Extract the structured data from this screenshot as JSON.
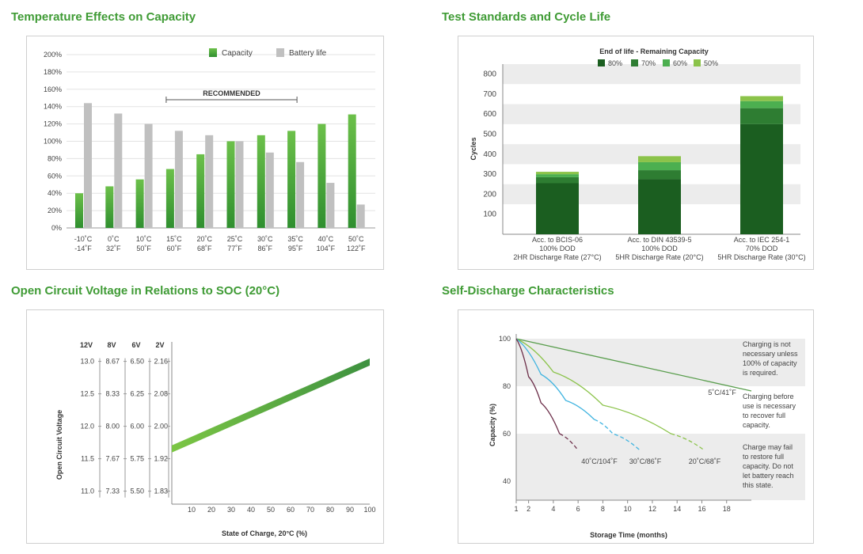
{
  "colors": {
    "title_green": "#3f9b35",
    "capacity_green": "#5cb85c",
    "battery_gray": "#c0c0c0",
    "c80": "#1b5e20",
    "c70": "#2e7d32",
    "c60": "#4caf50",
    "c50": "#8bc34a",
    "band_gray": "#ececec",
    "ocv_green": "#5aab3c",
    "line_5c": "#5a9e4e",
    "line_20c": "#8bc34a",
    "line_30c": "#40b4e0",
    "line_40c": "#6d2f4a"
  },
  "chart_data": [
    {
      "id": "temperature",
      "type": "bar",
      "title": "Temperature Effects on Capacity",
      "categories": [
        "-10˚C",
        "0˚C",
        "10˚C",
        "15˚C",
        "20˚C",
        "25˚C",
        "30˚C",
        "35˚C",
        "40˚C",
        "50˚C"
      ],
      "categories_f": [
        "-14˚F",
        "32˚F",
        "50˚F",
        "60˚F",
        "68˚F",
        "77˚F",
        "86˚F",
        "95˚F",
        "104˚F",
        "122˚F"
      ],
      "series": [
        {
          "name": "Capacity",
          "values": [
            40,
            48,
            56,
            68,
            85,
            100,
            107,
            112,
            120,
            131
          ]
        },
        {
          "name": "Battery life",
          "values": [
            144,
            132,
            120,
            112,
            107,
            100,
            87,
            76,
            52,
            27
          ]
        }
      ],
      "ylim": [
        0,
        200
      ],
      "yticks": [
        "0%",
        "20%",
        "40%",
        "60%",
        "80%",
        "100%",
        "120%",
        "140%",
        "160%",
        "180%",
        "200%"
      ],
      "annotation": "RECOMMENDED",
      "legend": "top-right"
    },
    {
      "id": "cycle",
      "type": "bar",
      "stacked": true,
      "title": "Test Standards and Cycle Life",
      "legend_title": "End of life - Remaining Capacity",
      "ylabel": "Cycles",
      "ylim": [
        0,
        850
      ],
      "yticks": [
        "100",
        "200",
        "300",
        "400",
        "500",
        "600",
        "700",
        "800"
      ],
      "categories": [
        [
          "Acc. to BCIS-06",
          "100% DOD",
          "2HR Discharge Rate (27°C)"
        ],
        [
          "Acc. to DIN 43539-5",
          "100% DOD",
          "5HR Discharge Rate (20°C)"
        ],
        [
          "Acc. to IEC 254-1",
          "70% DOD",
          "5HR Discharge Rate (30°C)"
        ]
      ],
      "series": [
        {
          "name": "80%",
          "values": [
            255,
            275,
            550
          ]
        },
        {
          "name": "70%",
          "values": [
            30,
            45,
            80
          ]
        },
        {
          "name": "60%",
          "values": [
            15,
            40,
            35
          ]
        },
        {
          "name": "50%",
          "values": [
            12,
            30,
            25
          ]
        }
      ]
    },
    {
      "id": "ocv",
      "type": "line",
      "title": "Open Circuit Voltage in Relations to SOC (20°C)",
      "ylabel": "Open Circuit Voltage",
      "xlabel": "State of Charge, 20°C (%)",
      "x": [
        0,
        100
      ],
      "y": [
        11.65,
        12.99
      ],
      "ylim": [
        10.8,
        13.3
      ],
      "xticks": [
        "10",
        "20",
        "30",
        "40",
        "50",
        "60",
        "70",
        "80",
        "90",
        "100"
      ],
      "scales": [
        {
          "header": "12V",
          "ticks": [
            "13.0",
            "12.5",
            "12.0",
            "11.5",
            "11.0"
          ]
        },
        {
          "header": "8V",
          "ticks": [
            "8.67",
            "8.33",
            "8.00",
            "7.67",
            "7.33"
          ]
        },
        {
          "header": "6V",
          "ticks": [
            "6.50",
            "6.25",
            "6.00",
            "5.75",
            "5.50"
          ]
        },
        {
          "header": "2V",
          "ticks": [
            "2.16",
            "2.08",
            "2.00",
            "1.92",
            "1.83"
          ]
        }
      ]
    },
    {
      "id": "selfdischarge",
      "type": "line",
      "title": "Self-Discharge Characteristics",
      "ylabel": "Capacity (%)",
      "xlabel": "Storage Time (months)",
      "xlim": [
        1,
        20
      ],
      "ylim": [
        32,
        102
      ],
      "xticks": [
        "1",
        "2",
        "4",
        "6",
        "8",
        "10",
        "12",
        "14",
        "16",
        "18"
      ],
      "yticks": [
        "100",
        "80",
        "60",
        "40"
      ],
      "series": [
        {
          "name": "5˚C/41˚F",
          "x": [
            1,
            20
          ],
          "y": [
            100,
            78
          ]
        },
        {
          "name": "20˚C/68˚F",
          "x": [
            1,
            4,
            8,
            13.5,
            16.2
          ],
          "y": [
            100,
            86,
            72,
            60,
            53
          ]
        },
        {
          "name": "30˚C/86˚F",
          "x": [
            1,
            3,
            5,
            7.3,
            8.8,
            11
          ],
          "y": [
            100,
            85,
            74,
            66,
            60,
            53
          ]
        },
        {
          "name": "40˚C/104˚F",
          "x": [
            1,
            2,
            3,
            4.5,
            6
          ],
          "y": [
            100,
            84,
            73,
            60,
            53
          ]
        }
      ],
      "notes": [
        [
          "Charging is not",
          "necessary unless",
          "100% of capacity",
          "is required."
        ],
        [
          "Charging before",
          "use is necessary",
          "to recover full",
          "capacity."
        ],
        [
          "Charge may fail",
          "to restore full",
          "capacity. Do not",
          "let battery reach",
          "this state."
        ]
      ]
    }
  ]
}
